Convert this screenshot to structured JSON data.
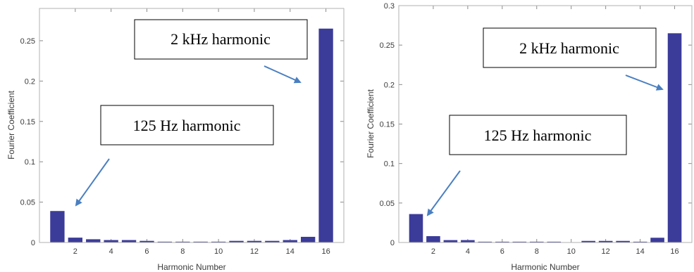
{
  "chart_data": [
    {
      "type": "bar",
      "xlabel": "Harmonic Number",
      "ylabel": "Fourier Coefficient",
      "xlim": [
        0,
        17
      ],
      "ylim": [
        0,
        0.29
      ],
      "x_ticks": [
        "2",
        "4",
        "6",
        "8",
        "10",
        "12",
        "14",
        "16"
      ],
      "y_ticks": [
        "0",
        "0.05",
        "0.1",
        "0.15",
        "0.2",
        "0.25"
      ],
      "categories": [
        1,
        2,
        3,
        4,
        5,
        6,
        7,
        8,
        9,
        10,
        11,
        12,
        13,
        14,
        15,
        16
      ],
      "values": [
        0.039,
        0.006,
        0.004,
        0.003,
        0.003,
        0.002,
        0.001,
        0.001,
        0.001,
        0.001,
        0.002,
        0.002,
        0.002,
        0.003,
        0.007,
        0.265
      ],
      "bar_color": "#3b3b9a",
      "annotations": [
        {
          "text": "2 kHz harmonic",
          "points_to_harmonic": 16
        },
        {
          "text": "125 Hz harmonic",
          "points_to_harmonic": 1
        }
      ],
      "arrow_color": "#4a7fc1"
    },
    {
      "type": "bar",
      "xlabel": "Harmonic Number",
      "ylabel": "Fourier Coefficient",
      "xlim": [
        0,
        17
      ],
      "ylim": [
        0,
        0.3
      ],
      "x_ticks": [
        "2",
        "4",
        "6",
        "8",
        "10",
        "12",
        "14",
        "16"
      ],
      "y_ticks": [
        "0",
        "0.05",
        "0.1",
        "0.15",
        "0.2",
        "0.25",
        "0.3"
      ],
      "categories": [
        1,
        2,
        3,
        4,
        5,
        6,
        7,
        8,
        9,
        10,
        11,
        12,
        13,
        14,
        15,
        16
      ],
      "values": [
        0.036,
        0.008,
        0.003,
        0.003,
        0.001,
        0.001,
        0.001,
        0.001,
        0.001,
        0,
        0.002,
        0.002,
        0.002,
        0.001,
        0.006,
        0.265
      ],
      "bar_color": "#3b3b9a",
      "annotations": [
        {
          "text": "2 kHz harmonic",
          "points_to_harmonic": 16
        },
        {
          "text": "125 Hz harmonic",
          "points_to_harmonic": 1
        }
      ],
      "arrow_color": "#4a7fc1"
    }
  ]
}
